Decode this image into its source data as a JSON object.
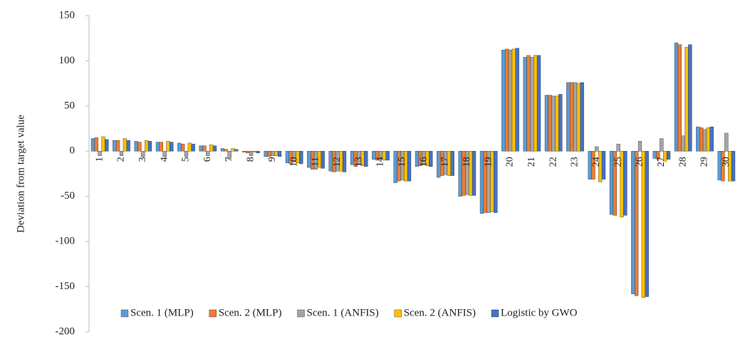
{
  "chart_data": {
    "type": "bar",
    "y_label": "Deviation from target value",
    "categories": [
      "1",
      "2",
      "3",
      "4",
      "5",
      "6",
      "7",
      "8",
      "9",
      "10",
      "11",
      "12",
      "13",
      "14",
      "15",
      "16",
      "17",
      "18",
      "19",
      "20",
      "21",
      "22",
      "23",
      "24",
      "25",
      "26",
      "27",
      "28",
      "29",
      "30"
    ],
    "series": [
      {
        "name": "Scen. 1 (MLP)",
        "color": "#5b9bd5",
        "values": [
          14,
          12,
          11,
          10,
          9,
          6,
          3,
          -1,
          -6,
          -13,
          -18,
          -22,
          -15,
          -9,
          -35,
          -17,
          -29,
          -50,
          -69,
          112,
          104,
          62,
          76,
          -31,
          -70,
          -158,
          -8,
          120,
          27,
          -32
        ]
      },
      {
        "name": "Scen. 2 (MLP)",
        "color": "#ed7d31",
        "values": [
          15,
          12,
          10,
          10,
          8,
          6,
          2,
          -2,
          -6,
          -14,
          -20,
          -23,
          -17,
          -10,
          -33,
          -16,
          -27,
          -49,
          -68,
          113,
          106,
          62,
          76,
          -31,
          -71,
          -160,
          -9,
          118,
          26,
          -33
        ]
      },
      {
        "name": "Scen. 1 (ANFIS)",
        "color": "#a5a5a5",
        "values": [
          -5,
          -5,
          -6,
          -6,
          -6,
          -5,
          -8,
          -5,
          -5,
          -12,
          -20,
          -22,
          -15,
          -9,
          -32,
          -15,
          -26,
          -48,
          -68,
          112,
          104,
          61,
          76,
          5,
          8,
          11,
          14,
          17,
          24,
          20
        ]
      },
      {
        "name": "Scen. 2 (ANFIS)",
        "color": "#ffc000",
        "values": [
          16,
          14,
          12,
          11,
          9,
          7,
          3,
          -1,
          -5,
          -13,
          -18,
          -22,
          -16,
          -10,
          -33,
          -16,
          -27,
          -49,
          -67,
          113,
          106,
          61,
          75,
          -34,
          -73,
          -162,
          -11,
          115,
          26,
          -33
        ]
      },
      {
        "name": "Logistic by GWO",
        "color": "#4472c4",
        "values": [
          13,
          12,
          11,
          10,
          8,
          6,
          2,
          -2,
          -6,
          -14,
          -19,
          -23,
          -17,
          -10,
          -33,
          -17,
          -27,
          -49,
          -68,
          114,
          106,
          63,
          76,
          -31,
          -71,
          -161,
          -9,
          118,
          27,
          -33
        ]
      }
    ],
    "ylim": [
      -200,
      150
    ],
    "yticks": [
      -200,
      -150,
      -100,
      -50,
      0,
      50,
      100,
      150
    ]
  }
}
